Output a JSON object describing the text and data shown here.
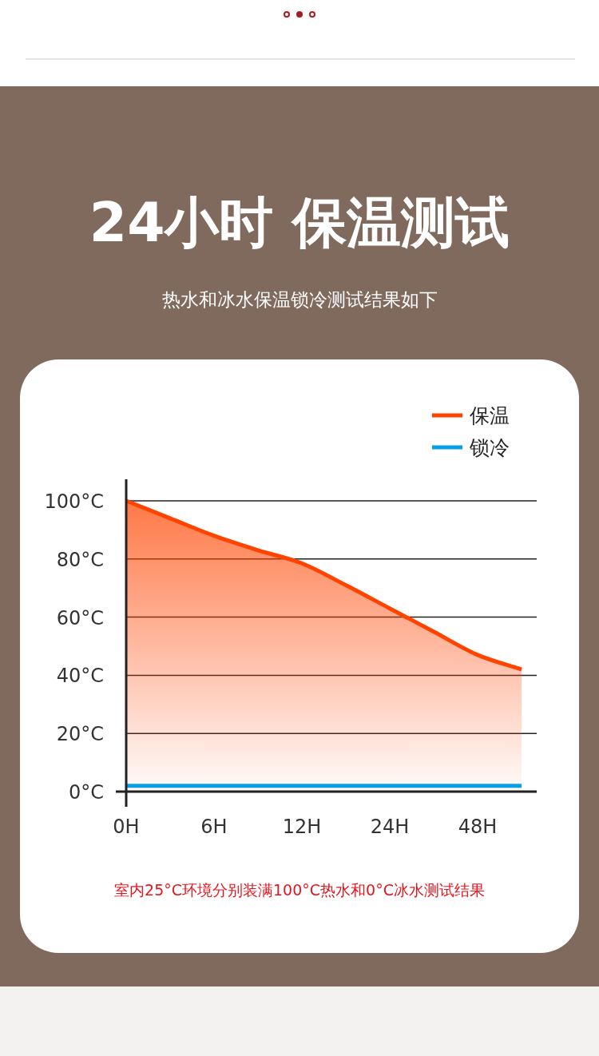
{
  "chart_data": {
    "type": "area",
    "title": "24小时 保温测试",
    "subtitle": "热水和冰水保温锁冷测试结果如下",
    "categories": [
      "0H",
      null,
      "6H",
      null,
      "12H",
      null,
      "24H",
      null,
      "48H",
      null
    ],
    "series": [
      {
        "name": "保温",
        "color": "#ff4400",
        "values": [
          100,
          94,
          88,
          83,
          78.5,
          71,
          63,
          55,
          47,
          42
        ]
      },
      {
        "name": "锁冷",
        "type": "line",
        "color": "#0aa0e6",
        "values": [
          2,
          2,
          2,
          2,
          2,
          2,
          2,
          2,
          2,
          2
        ]
      }
    ],
    "ylim": [
      0,
      100
    ],
    "yticks": [
      {
        "value": 0,
        "label": "0°C"
      },
      {
        "value": 20,
        "label": "20°C"
      },
      {
        "value": 40,
        "label": "40°C"
      },
      {
        "value": 60,
        "label": "60°C"
      },
      {
        "value": 80,
        "label": "80°C"
      },
      {
        "value": 100,
        "label": "100°C"
      }
    ],
    "grid": "y",
    "legend": "top right",
    "annotations": [
      "室内25°C环境分别装满100°C热水和0°C冰水测试结果"
    ]
  }
}
